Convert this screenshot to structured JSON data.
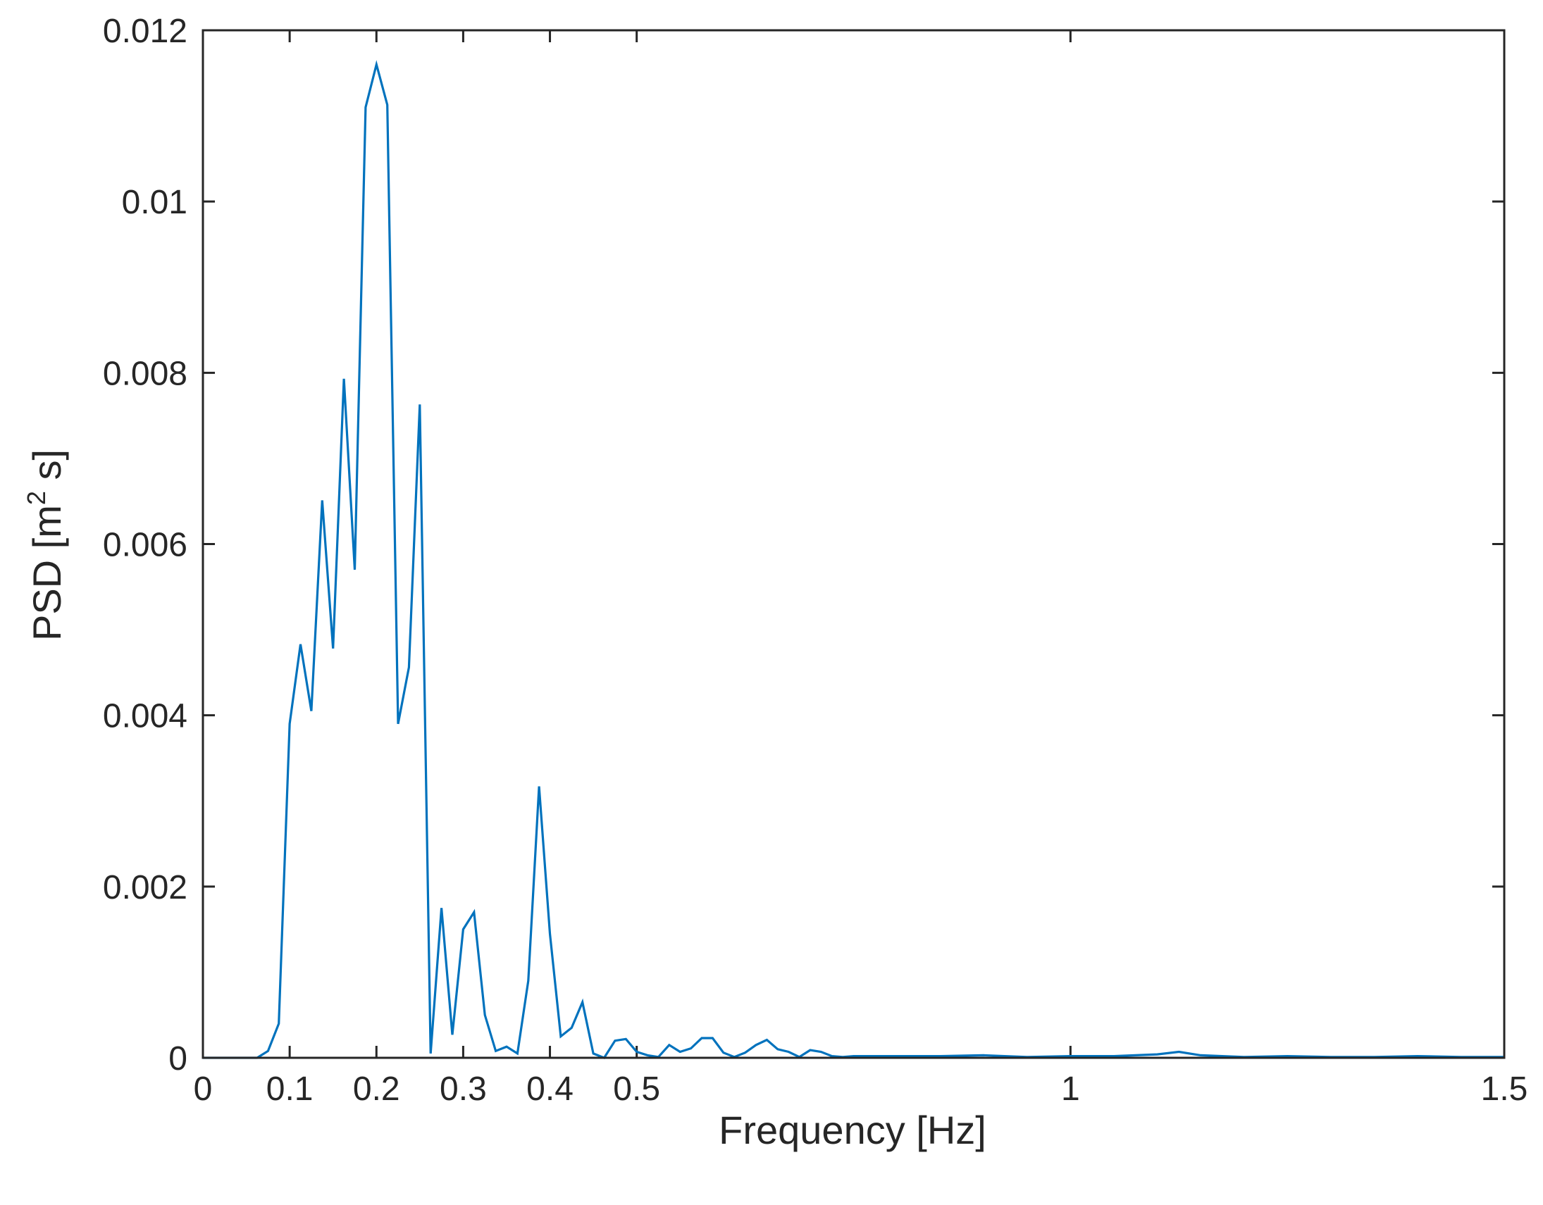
{
  "chart_data": {
    "type": "line",
    "title": "",
    "xlabel": "Frequency [Hz]",
    "ylabel": "PSD [m",
    "ylabel_sup": "2",
    "ylabel_tail": " s]",
    "xlim": [
      0,
      1.5
    ],
    "ylim": [
      0,
      0.012
    ],
    "x_ticks": [
      0,
      0.1,
      0.2,
      0.3,
      0.4,
      0.5,
      1,
      1.5
    ],
    "x_tick_labels": [
      "0",
      "0.1",
      "0.2",
      "0.3",
      "0.4",
      "0.5",
      "1",
      "1.5"
    ],
    "y_ticks": [
      0,
      0.002,
      0.004,
      0.006,
      0.008,
      0.01,
      0.012
    ],
    "y_tick_labels": [
      "0",
      "0.002",
      "0.004",
      "0.006",
      "0.008",
      "0.01",
      "0.012"
    ],
    "grid": false,
    "line_color": "#0072BD",
    "series": [
      {
        "x": [
          0,
          0.0625,
          0.075,
          0.0875,
          0.1,
          0.1125,
          0.125,
          0.1375,
          0.15,
          0.1625,
          0.175,
          0.1875,
          0.2,
          0.2125,
          0.225,
          0.2375,
          0.25,
          0.2625,
          0.275,
          0.2875,
          0.3,
          0.3125,
          0.325,
          0.3375,
          0.35,
          0.3625,
          0.375,
          0.3875,
          0.4,
          0.4125,
          0.425,
          0.4375,
          0.45,
          0.4625,
          0.475,
          0.4875,
          0.5,
          0.5125,
          0.525,
          0.5375,
          0.55,
          0.5625,
          0.575,
          0.5875,
          0.6,
          0.6125,
          0.625,
          0.6375,
          0.65,
          0.6625,
          0.675,
          0.6875,
          0.7,
          0.7125,
          0.725,
          0.7375,
          0.75,
          0.8,
          0.85,
          0.9,
          0.95,
          1.0,
          1.05,
          1.1,
          1.125,
          1.15,
          1.2,
          1.25,
          1.3,
          1.35,
          1.4,
          1.45,
          1.5
        ],
        "y": [
          0,
          0,
          8e-05,
          0.0004,
          0.0039,
          0.00483,
          0.00405,
          0.00651,
          0.00478,
          0.00793,
          0.0057,
          0.0111,
          0.0116,
          0.01113,
          0.0039,
          0.00456,
          0.00763,
          5e-05,
          0.00175,
          0.00027,
          0.0015,
          0.0017,
          0.0005,
          8e-05,
          0.00013,
          5e-05,
          0.0009,
          0.00317,
          0.00145,
          0.00025,
          0.00035,
          0.00065,
          5e-05,
          0.0,
          0.0002,
          0.00022,
          7e-05,
          3e-05,
          1e-05,
          0.00015,
          7e-05,
          0.00011,
          0.00023,
          0.00023,
          6e-05,
          1e-05,
          6e-05,
          0.00015,
          0.00021,
          0.0001,
          7e-05,
          1e-05,
          9e-05,
          7e-05,
          2e-05,
          1e-05,
          2e-05,
          2e-05,
          2e-05,
          3e-05,
          1e-05,
          2e-05,
          2e-05,
          4e-05,
          7e-05,
          3e-05,
          1e-05,
          2e-05,
          1e-05,
          1e-05,
          2e-05,
          1e-05,
          1e-05
        ]
      }
    ]
  }
}
